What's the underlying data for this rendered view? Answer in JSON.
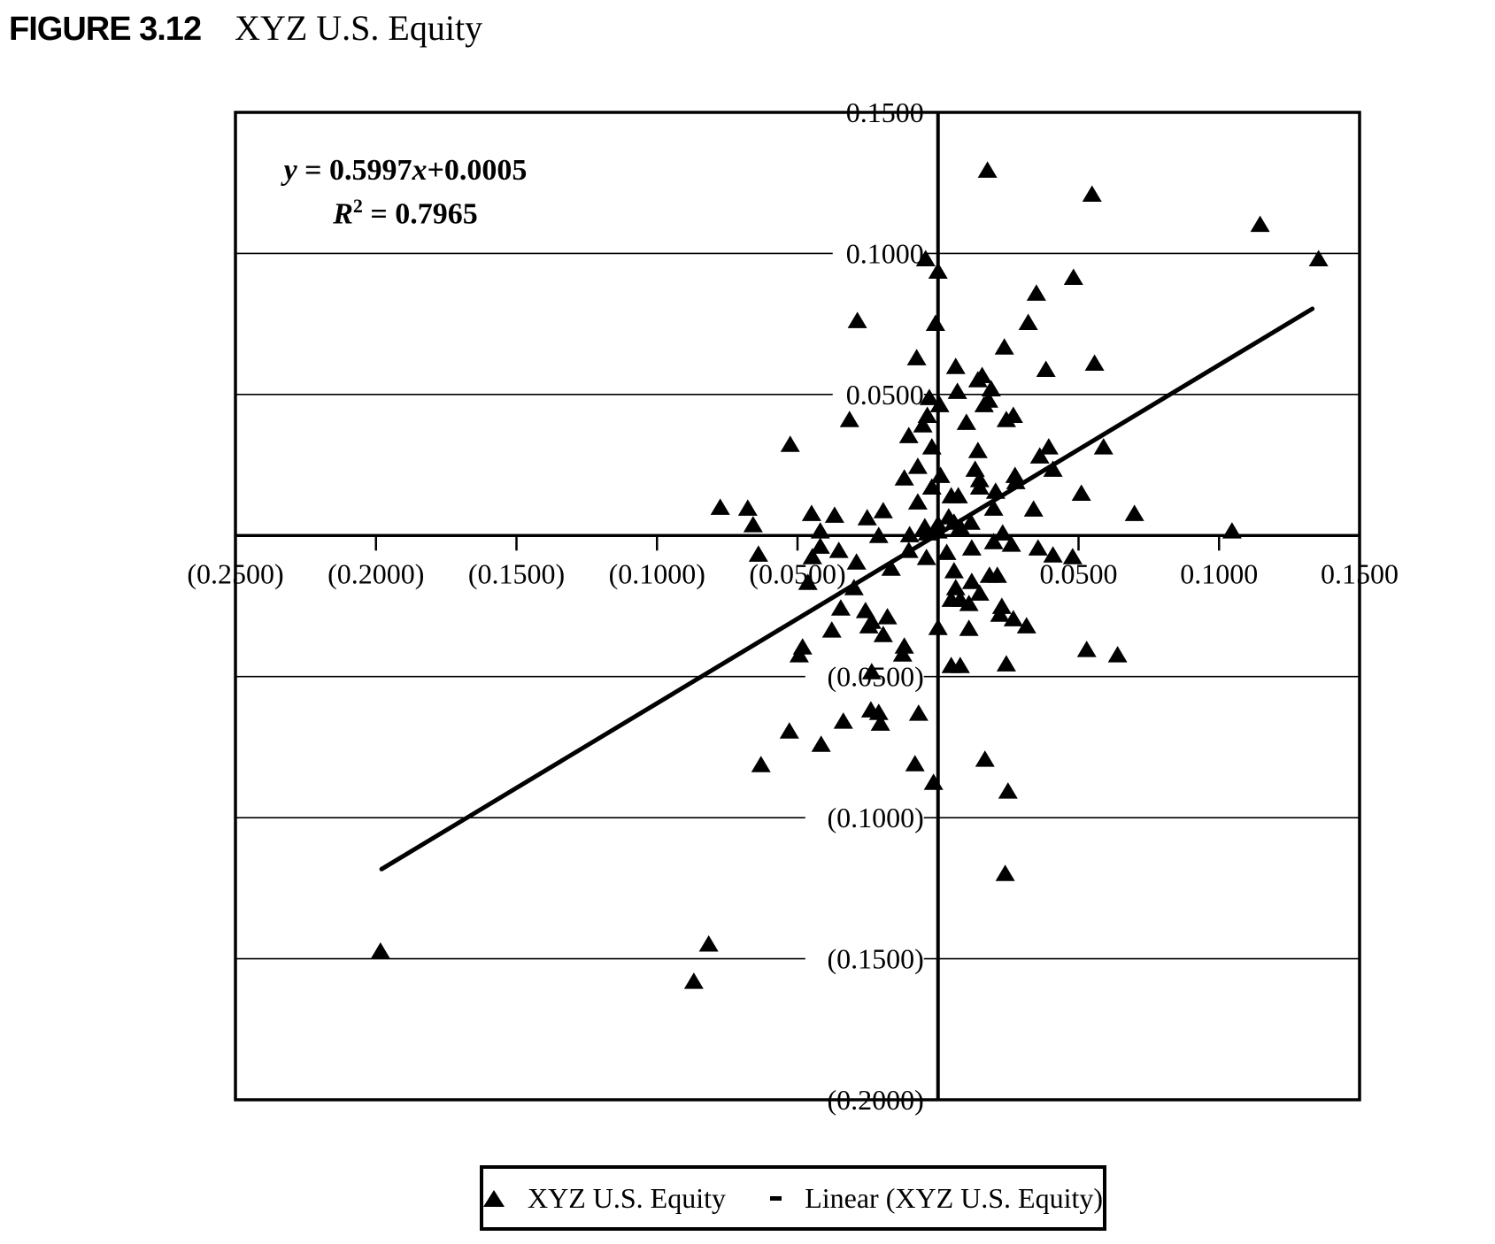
{
  "header": {
    "figure_label": "FIGURE 3.12",
    "figure_title": "XYZ U.S. Equity"
  },
  "annotation": {
    "eq_y": "y",
    "eq_mid": " = 0.5997",
    "eq_x": "x",
    "eq_tail": "+0.0005",
    "r_base": "R",
    "r_sup": "2",
    "r_tail": " = 0.7965"
  },
  "colors": {
    "ink": "#000000",
    "paper": "#ffffff"
  },
  "chart_data": {
    "type": "scatter",
    "title": "XYZ U.S. Equity",
    "xlabel": "",
    "ylabel": "",
    "grid": "horizontal",
    "x_axis": {
      "min": -0.25,
      "max": 0.15,
      "tick_step": 0.05,
      "ticks": [
        {
          "v": -0.25,
          "label": "(0.2500)"
        },
        {
          "v": -0.2,
          "label": "(0.2000)"
        },
        {
          "v": -0.15,
          "label": "(0.1500)"
        },
        {
          "v": -0.1,
          "label": "(0.1000)"
        },
        {
          "v": -0.05,
          "label": "(0.0500)"
        },
        {
          "v": 0.05,
          "label": "0.0500"
        },
        {
          "v": 0.1,
          "label": "0.1000"
        },
        {
          "v": 0.15,
          "label": "0.1500"
        }
      ]
    },
    "y_axis": {
      "min": -0.2,
      "max": 0.15,
      "tick_step": 0.05,
      "ticks": [
        {
          "v": 0.15,
          "label": "0.1500"
        },
        {
          "v": 0.1,
          "label": "0.1000"
        },
        {
          "v": 0.05,
          "label": "0.0500"
        },
        {
          "v": -0.05,
          "label": "(0.0500)"
        },
        {
          "v": -0.1,
          "label": "(0.1000)"
        },
        {
          "v": -0.15,
          "label": "(0.1500)"
        },
        {
          "v": -0.2,
          "label": "(0.2000)"
        }
      ]
    },
    "trendline": {
      "label": "Linear (XYZ U.S. Equity)",
      "slope": 0.5997,
      "intercept": 0.0005,
      "r2": 0.7965,
      "x_start": -0.198,
      "x_end": 0.1332
    },
    "legend": {
      "position": "bottom",
      "entries": [
        {
          "type": "marker",
          "label": "XYZ U.S. Equity"
        },
        {
          "type": "line",
          "label": "Linear (XYZ U.S. Equity)"
        }
      ]
    },
    "series": [
      {
        "name": "XYZ U.S. Equity",
        "marker": "triangle",
        "points": [
          [
            0.0176,
            0.1295
          ],
          [
            0.0548,
            0.121
          ],
          [
            0.1146,
            0.1103
          ],
          [
            0.1354,
            0.0981
          ],
          [
            -0.0044,
            0.0981
          ],
          [
            0.0,
            0.0937
          ],
          [
            0.0482,
            0.0915
          ],
          [
            0.035,
            0.0859
          ],
          [
            -0.0287,
            0.0762
          ],
          [
            -0.0009,
            0.0752
          ],
          [
            0.0321,
            0.0755
          ],
          [
            0.0236,
            0.0668
          ],
          [
            -0.0076,
            0.063
          ],
          [
            0.0063,
            0.0599
          ],
          [
            0.0157,
            0.0567
          ],
          [
            0.0384,
            0.0589
          ],
          [
            0.0557,
            0.0611
          ],
          [
            -0.0315,
            0.0411
          ],
          [
            -0.0526,
            0.0323
          ],
          [
            -0.0104,
            0.0354
          ],
          [
            -0.012,
            0.0204
          ],
          [
            0.0142,
            0.0552
          ],
          [
            0.0189,
            0.052
          ],
          [
            -0.0031,
            0.0489
          ],
          [
            0.0006,
            0.0464
          ],
          [
            0.0069,
            0.0511
          ],
          [
            0.0164,
            0.0464
          ],
          [
            0.018,
            0.048
          ],
          [
            -0.0038,
            0.0426
          ],
          [
            0.0101,
            0.0401
          ],
          [
            0.0243,
            0.0411
          ],
          [
            0.0268,
            0.0426
          ],
          [
            -0.0054,
            0.0392
          ],
          [
            -0.0072,
            0.0245
          ],
          [
            -0.0022,
            0.0314
          ],
          [
            0.0142,
            0.0301
          ],
          [
            0.0362,
            0.0282
          ],
          [
            0.0394,
            0.0314
          ],
          [
            0.0009,
            0.0213
          ],
          [
            0.0132,
            0.0235
          ],
          [
            0.0148,
            0.0198
          ],
          [
            0.0274,
            0.0213
          ],
          [
            0.0409,
            0.0235
          ],
          [
            0.0589,
            0.0314
          ],
          [
            -0.0022,
            0.0172
          ],
          [
            0.0047,
            0.0141
          ],
          [
            0.0072,
            0.0141
          ],
          [
            0.0148,
            0.0172
          ],
          [
            0.0205,
            0.0157
          ],
          [
            0.0277,
            0.0191
          ],
          [
            0.051,
            0.015
          ],
          [
            -0.0072,
            0.0119
          ],
          [
            0.0038,
            0.0066
          ],
          [
            0.0198,
            0.0097
          ],
          [
            0.034,
            0.0094
          ],
          [
            0.0699,
            0.0078
          ],
          [
            0.1046,
            0.0016
          ],
          [
            -0.0775,
            0.01
          ],
          [
            -0.0677,
            0.0097
          ],
          [
            -0.0658,
            0.0038
          ],
          [
            -0.045,
            0.0078
          ],
          [
            -0.0368,
            0.0072
          ],
          [
            -0.0252,
            0.0063
          ],
          [
            -0.0195,
            0.0088
          ],
          [
            -0.0419,
            0.0016
          ],
          [
            -0.0211,
            0.0
          ],
          [
            -0.0101,
            0.0003
          ],
          [
            -0.0038,
            0.0009
          ],
          [
            0.0,
            0.0041
          ],
          [
            0.0057,
            0.0047
          ],
          [
            0.0117,
            0.0047
          ],
          [
            0.0,
            0.0016
          ],
          [
            0.0079,
            0.0031
          ],
          [
            -0.0047,
            0.0031
          ],
          [
            0.023,
            0.0009
          ],
          [
            -0.0419,
            -0.0038
          ],
          [
            -0.0353,
            -0.0053
          ],
          [
            -0.0639,
            -0.0066
          ],
          [
            -0.0447,
            -0.0075
          ],
          [
            -0.029,
            -0.0094
          ],
          [
            -0.0167,
            -0.0116
          ],
          [
            -0.0104,
            -0.0053
          ],
          [
            -0.0041,
            -0.0078
          ],
          [
            0.0031,
            -0.006
          ],
          [
            0.012,
            -0.0044
          ],
          [
            0.0198,
            -0.0022
          ],
          [
            0.0261,
            -0.0031
          ],
          [
            0.0356,
            -0.0044
          ],
          [
            0.0409,
            -0.0069
          ],
          [
            0.0479,
            -0.0075
          ],
          [
            0.0057,
            -0.0125
          ],
          [
            0.0183,
            -0.0141
          ],
          [
            0.0211,
            -0.0141
          ],
          [
            0.0063,
            -0.0185
          ],
          [
            0.012,
            -0.0163
          ],
          [
            0.0148,
            -0.0204
          ],
          [
            0.0047,
            -0.0226
          ],
          [
            0.0079,
            -0.0226
          ],
          [
            0.011,
            -0.0241
          ],
          [
            0.0227,
            -0.0251
          ],
          [
            0.022,
            -0.0279
          ],
          [
            0.0268,
            -0.0295
          ],
          [
            0.0315,
            -0.032
          ],
          [
            0.0,
            -0.0326
          ],
          [
            0.011,
            -0.0329
          ],
          [
            0.0529,
            -0.0404
          ],
          [
            0.0639,
            -0.0423
          ],
          [
            0.0047,
            -0.0461
          ],
          [
            0.0079,
            -0.0461
          ],
          [
            0.0243,
            -0.0455
          ],
          [
            -0.0463,
            -0.0166
          ],
          [
            -0.0299,
            -0.0185
          ],
          [
            -0.0346,
            -0.0257
          ],
          [
            -0.0258,
            -0.0266
          ],
          [
            -0.0236,
            -0.0304
          ],
          [
            -0.018,
            -0.0288
          ],
          [
            -0.0378,
            -0.0335
          ],
          [
            -0.0246,
            -0.032
          ],
          [
            -0.0195,
            -0.0351
          ],
          [
            -0.0482,
            -0.0395
          ],
          [
            -0.012,
            -0.0392
          ],
          [
            -0.0494,
            -0.0423
          ],
          [
            -0.0126,
            -0.042
          ],
          [
            -0.0236,
            -0.0483
          ],
          [
            -0.0239,
            -0.0618
          ],
          [
            -0.0211,
            -0.0627
          ],
          [
            -0.0205,
            -0.0665
          ],
          [
            -0.0337,
            -0.0658
          ],
          [
            -0.0069,
            -0.063
          ],
          [
            -0.0529,
            -0.0693
          ],
          [
            -0.0416,
            -0.074
          ],
          [
            -0.063,
            -0.0812
          ],
          [
            -0.0082,
            -0.0809
          ],
          [
            -0.0016,
            -0.0875
          ],
          [
            0.0167,
            -0.0793
          ],
          [
            0.0249,
            -0.0906
          ],
          [
            0.0239,
            -0.1198
          ],
          [
            -0.1984,
            -0.1473
          ],
          [
            -0.0816,
            -0.1448
          ],
          [
            -0.0869,
            -0.158
          ]
        ]
      }
    ]
  }
}
